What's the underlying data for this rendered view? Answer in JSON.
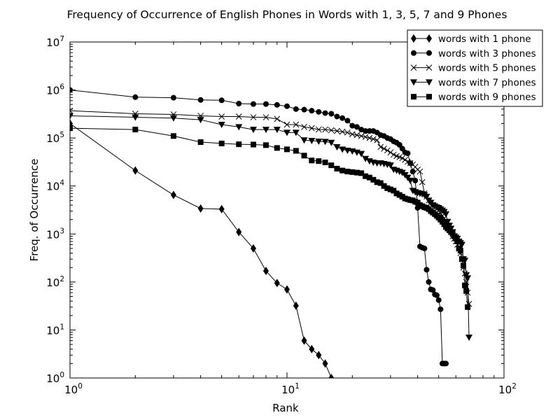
{
  "chart_data": {
    "type": "line",
    "title": "Frequency of Occurrence of English Phones in Words with 1, 3, 5, 7 and 9 Phones",
    "xlabel": "Rank",
    "ylabel": "Freq. of Occurrence",
    "xscale": "log",
    "yscale": "log",
    "xlim": [
      1,
      100
    ],
    "ylim": [
      1,
      10000000
    ],
    "grid": false,
    "legend_position": "top-right",
    "x_ticks": [
      {
        "value": 1,
        "base": "10",
        "exp": "0"
      },
      {
        "value": 10,
        "base": "10",
        "exp": "1"
      },
      {
        "value": 100,
        "base": "10",
        "exp": "2"
      }
    ],
    "y_ticks": [
      {
        "value": 1,
        "base": "10",
        "exp": "0"
      },
      {
        "value": 10,
        "base": "10",
        "exp": "1"
      },
      {
        "value": 100,
        "base": "10",
        "exp": "2"
      },
      {
        "value": 1000,
        "base": "10",
        "exp": "3"
      },
      {
        "value": 10000,
        "base": "10",
        "exp": "4"
      },
      {
        "value": 100000,
        "base": "10",
        "exp": "5"
      },
      {
        "value": 1000000,
        "base": "10",
        "exp": "6"
      },
      {
        "value": 10000000,
        "base": "10",
        "exp": "7"
      }
    ],
    "series": [
      {
        "name": "words with 1 phone",
        "marker": "diamond",
        "x": [
          1,
          2,
          3,
          4,
          5,
          6,
          7,
          8,
          9,
          10,
          11,
          12,
          13,
          14,
          15,
          16
        ],
        "y": [
          200000,
          21000,
          6500,
          3400,
          3300,
          1100,
          500,
          170,
          95,
          70,
          32,
          6,
          4,
          3,
          2,
          1
        ]
      },
      {
        "name": "words with 3 phones",
        "marker": "circle",
        "x": [
          1,
          2,
          3,
          4,
          5,
          6,
          7,
          8,
          9,
          10,
          11,
          12,
          13,
          14,
          15,
          16,
          17,
          18,
          19,
          20,
          21,
          22,
          23,
          24,
          25,
          26,
          27,
          28,
          29,
          30,
          31,
          32,
          33,
          34,
          35,
          36,
          37,
          38,
          39,
          40,
          41,
          42,
          43,
          44,
          45,
          46,
          47,
          48,
          49,
          50,
          51,
          52,
          53,
          54
        ],
        "y": [
          1000000,
          710000,
          690000,
          620000,
          610000,
          520000,
          510000,
          510000,
          490000,
          460000,
          400000,
          390000,
          370000,
          350000,
          330000,
          320000,
          280000,
          260000,
          230000,
          180000,
          170000,
          150000,
          140000,
          140000,
          140000,
          130000,
          115000,
          110000,
          100000,
          95000,
          85000,
          80000,
          72000,
          60000,
          50000,
          48000,
          30000,
          20000,
          13000,
          3500,
          550,
          520,
          500,
          180,
          100,
          70,
          68,
          55,
          53,
          42,
          27,
          2,
          2,
          2
        ]
      },
      {
        "name": "words with 5 phones",
        "marker": "x",
        "x": [
          1,
          2,
          3,
          4,
          5,
          6,
          7,
          8,
          9,
          10,
          11,
          12,
          13,
          14,
          15,
          16,
          17,
          18,
          19,
          20,
          21,
          22,
          23,
          24,
          25,
          26,
          27,
          28,
          29,
          30,
          31,
          32,
          33,
          34,
          35,
          36,
          37,
          38,
          39,
          40,
          41,
          42,
          43,
          44,
          45,
          46,
          47,
          48,
          49,
          50,
          51,
          52,
          53,
          54,
          55,
          56,
          57,
          58,
          59,
          60,
          61,
          62,
          63,
          64,
          65,
          66,
          67,
          68,
          69
        ],
        "y": [
          370000,
          320000,
          310000,
          290000,
          280000,
          280000,
          270000,
          270000,
          250000,
          190000,
          190000,
          170000,
          160000,
          150000,
          150000,
          145000,
          140000,
          135000,
          130000,
          120000,
          115000,
          110000,
          105000,
          100000,
          95000,
          90000,
          65000,
          60000,
          55000,
          50000,
          45000,
          42000,
          40000,
          38000,
          35000,
          32000,
          30000,
          28000,
          25000,
          22000,
          20000,
          12000,
          7000,
          6000,
          5000,
          4500,
          4000,
          3600,
          3300,
          3000,
          2700,
          2400,
          2100,
          1800,
          1500,
          1300,
          1100,
          900,
          800,
          700,
          600,
          500,
          400,
          300,
          200,
          150,
          100,
          60,
          35
        ]
      },
      {
        "name": "words with 7 phones",
        "marker": "triangle-down",
        "x": [
          1,
          2,
          3,
          4,
          5,
          6,
          7,
          8,
          9,
          10,
          11,
          12,
          13,
          14,
          15,
          16,
          17,
          18,
          19,
          20,
          21,
          22,
          23,
          24,
          25,
          26,
          27,
          28,
          29,
          30,
          31,
          32,
          33,
          34,
          35,
          36,
          37,
          38,
          39,
          40,
          41,
          42,
          43,
          44,
          45,
          46,
          47,
          48,
          49,
          50,
          51,
          52,
          53,
          54,
          55,
          56,
          57,
          58,
          59,
          60,
          61,
          62,
          63,
          64,
          65,
          66,
          67,
          68,
          69
        ],
        "y": [
          290000,
          270000,
          260000,
          240000,
          190000,
          170000,
          150000,
          150000,
          150000,
          130000,
          130000,
          90000,
          88000,
          85000,
          84000,
          80000,
          65000,
          58000,
          55000,
          53000,
          50000,
          47000,
          37000,
          33000,
          31000,
          30000,
          30000,
          29000,
          28000,
          27000,
          22000,
          21000,
          20000,
          19000,
          17000,
          15000,
          13000,
          8000,
          7500,
          7200,
          7000,
          6800,
          6500,
          6000,
          5000,
          4500,
          4000,
          3800,
          3600,
          3500,
          3300,
          3100,
          2900,
          2600,
          1800,
          1500,
          1300,
          1100,
          900,
          850,
          800,
          700,
          650,
          600,
          300,
          280,
          140,
          120,
          7
        ]
      },
      {
        "name": "words with 9 phones",
        "marker": "square",
        "x": [
          1,
          2,
          3,
          4,
          5,
          6,
          7,
          8,
          9,
          10,
          11,
          12,
          13,
          14,
          15,
          16,
          17,
          18,
          19,
          20,
          21,
          22,
          23,
          24,
          25,
          26,
          27,
          28,
          29,
          30,
          31,
          32,
          33,
          34,
          35,
          36,
          37,
          38,
          39,
          40,
          41,
          42,
          43,
          44,
          45,
          46,
          47,
          48,
          49,
          50,
          51,
          52,
          53,
          54,
          55,
          56,
          57,
          58,
          59,
          60,
          61,
          62,
          63,
          64,
          65,
          66,
          67,
          68
        ],
        "y": [
          160000,
          150000,
          110000,
          82000,
          77000,
          74000,
          73000,
          71000,
          62000,
          58000,
          54000,
          43000,
          34000,
          33000,
          31000,
          27000,
          23000,
          21000,
          20000,
          19500,
          19000,
          18500,
          16000,
          15000,
          13500,
          12000,
          11500,
          10000,
          9000,
          8500,
          8000,
          7000,
          6500,
          6000,
          5500,
          5300,
          5100,
          5000,
          4700,
          4500,
          4000,
          3800,
          3600,
          3500,
          3300,
          3000,
          2800,
          2600,
          2400,
          2200,
          2000,
          1800,
          1600,
          1400,
          1300,
          1200,
          1100,
          1000,
          900,
          800,
          700,
          500,
          450,
          300,
          220,
          85,
          65,
          30
        ]
      }
    ]
  }
}
